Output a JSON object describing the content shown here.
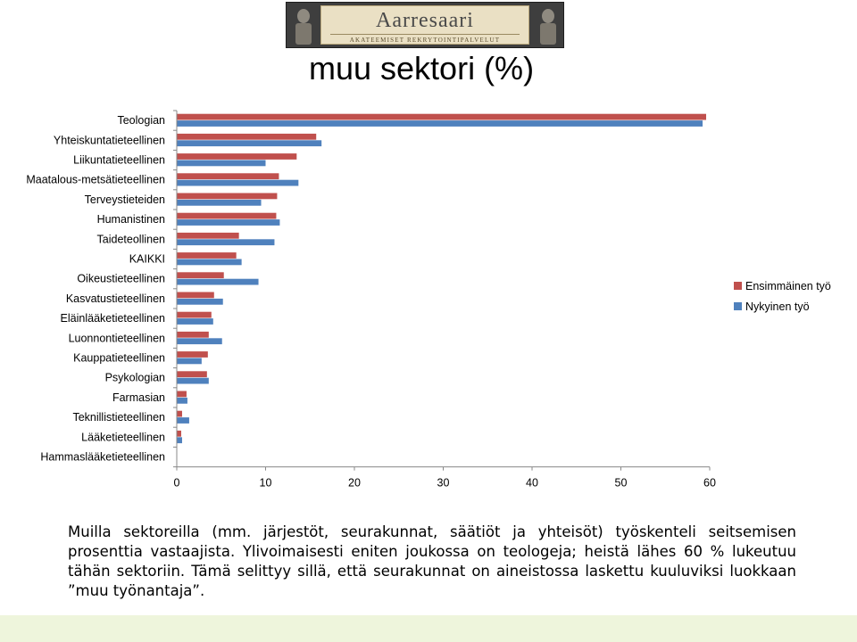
{
  "header": {
    "logo_name": "Aarresaari",
    "logo_tagline": "AKATEEMISET REKRYTOINTIPALVELUT",
    "title": "muu sektori (%)"
  },
  "colors": {
    "series_first": "#c0504d",
    "series_current": "#4f81bd"
  },
  "chart_data": {
    "type": "bar",
    "orientation": "horizontal",
    "categories": [
      "Teologian",
      "Yhteiskuntatieteellinen",
      "Liikuntatieteellinen",
      "Maatalous-metsätieteellinen",
      "Terveystieteiden",
      "Humanistinen",
      "Taideteollinen",
      "KAIKKI",
      "Oikeustieteellinen",
      "Kasvatustieteellinen",
      "Eläinlääketieteellinen",
      "Luonnontieteellinen",
      "Kauppatieteellinen",
      "Psykologian",
      "Farmasian",
      "Teknillistieteellinen",
      "Lääketieteellinen",
      "Hammaslääketieteellinen"
    ],
    "series": [
      {
        "name": "Ensimmäinen työ",
        "values": [
          59.6,
          15.7,
          13.5,
          11.5,
          11.3,
          11.2,
          7.0,
          6.7,
          5.3,
          4.2,
          3.9,
          3.6,
          3.5,
          3.4,
          1.1,
          0.6,
          0.5,
          0
        ]
      },
      {
        "name": "Nykyinen työ",
        "values": [
          59.2,
          16.3,
          10.0,
          13.7,
          9.5,
          11.6,
          11.0,
          7.3,
          9.2,
          5.2,
          4.1,
          5.1,
          2.8,
          3.6,
          1.2,
          1.4,
          0.6,
          0
        ]
      }
    ],
    "xlim": [
      0,
      60
    ],
    "xticks": [
      0,
      10,
      20,
      30,
      40,
      50,
      60
    ],
    "legend_position": "right",
    "grid": false
  },
  "caption": {
    "text": "Muilla sektoreilla (mm. järjestöt, seurakunnat, säätiöt ja yhteisöt) työskenteli seitsemisen prosenttia vastaajista. Ylivoimaisesti eniten joukossa on teologeja; heistä lähes 60 % lukeutuu tähän sektoriin. Tämä selittyy sillä, että seurakunnat on aineistossa laskettu kuuluviksi luokkaan ”muu työnantaja”."
  }
}
